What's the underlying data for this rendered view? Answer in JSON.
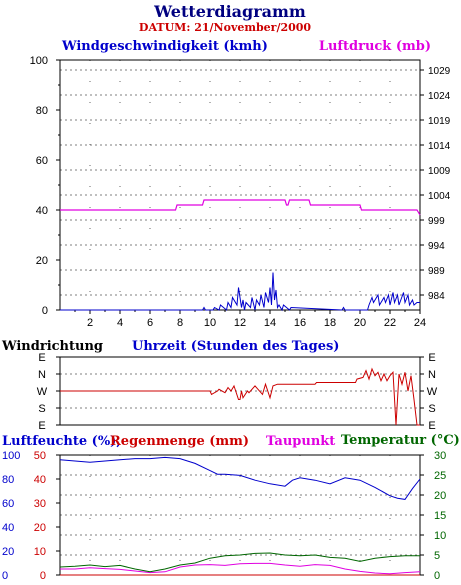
{
  "title": "Wetterdiagramm",
  "date_label": "DATUM: 21/November/2000",
  "colors": {
    "title": "#000080",
    "date": "#cc0000",
    "wind": "#0000cc",
    "pressure": "#e000e0",
    "winddir": "#cc0000",
    "humidity": "#0000cc",
    "rain": "#cc0000",
    "dewpoint": "#e000e0",
    "temperature": "#006600",
    "frame": "#000000",
    "grid": "#000000"
  },
  "chart_data": [
    {
      "id": "wind_pressure",
      "type": "line",
      "left_label": "Windgeschwindigkeit (kmh)",
      "right_label": "Luftdruck (mb)",
      "bottom_label": "Uhrzeit (Stunden des Tages)",
      "x_ticks": [
        "2",
        "4",
        "6",
        "8",
        "10",
        "12",
        "14",
        "16",
        "18",
        "20",
        "22",
        "24"
      ],
      "left_ticks": [
        "100",
        "80",
        "60",
        "40",
        "20",
        "0"
      ],
      "right_ticks": [
        "1029",
        "1024",
        "1019",
        "1014",
        "1009",
        "1004",
        "999",
        "994",
        "989",
        "984"
      ],
      "xlim": [
        0,
        24
      ],
      "ylim_left": [
        0,
        100
      ],
      "ylim_right": [
        981,
        1031
      ],
      "series": [
        {
          "name": "Windgeschwindigkeit (kmh)",
          "axis": "left",
          "x": [
            0,
            9.5,
            9.6,
            9.7,
            10.2,
            10.3,
            10.6,
            10.7,
            11.1,
            11.2,
            11.4,
            11.5,
            11.8,
            11.9,
            12.1,
            12.2,
            12.3,
            12.4,
            12.7,
            12.8,
            13.0,
            13.1,
            13.3,
            13.4,
            13.6,
            13.7,
            13.9,
            14.0,
            14.1,
            14.2,
            14.3,
            14.4,
            14.5,
            14.6,
            14.8,
            14.9,
            15.3,
            15.4,
            18.8,
            18.9,
            19.0,
            20.5,
            20.6,
            20.8,
            20.9,
            21.2,
            21.3,
            21.6,
            21.7,
            21.9,
            22.0,
            22.2,
            22.3,
            22.5,
            22.6,
            22.9,
            23.0,
            23.2,
            23.3,
            23.5,
            23.6,
            23.8,
            24
          ],
          "y": [
            0,
            0,
            1,
            0,
            0,
            1,
            0,
            2,
            0,
            3,
            1,
            5,
            2,
            9,
            1,
            4,
            0,
            3,
            1,
            5,
            0,
            4,
            2,
            6,
            1,
            7,
            3,
            9,
            2,
            15,
            4,
            8,
            1,
            2,
            0,
            2,
            0,
            1,
            0,
            1,
            0,
            0,
            2,
            5,
            3,
            6,
            2,
            5,
            3,
            6,
            2,
            7,
            3,
            6,
            2,
            7,
            3,
            6,
            2,
            4,
            2,
            3,
            3
          ]
        },
        {
          "name": "Luftdruck (mb)",
          "axis": "right",
          "x": [
            0,
            7.7,
            7.8,
            9.5,
            9.6,
            15.0,
            15.1,
            15.2,
            15.3,
            16.6,
            16.7,
            16.9,
            17.0,
            20.0,
            20.1,
            23.8,
            24
          ],
          "y": [
            1001,
            1001,
            1002,
            1002,
            1003,
            1003,
            1002,
            1002,
            1003,
            1003,
            1002,
            1002,
            1002,
            1002,
            1001,
            1001,
            1000
          ]
        }
      ]
    },
    {
      "id": "wind_direction",
      "type": "line",
      "title": "Windrichtung",
      "y_ticks": [
        "E",
        "N",
        "W",
        "S",
        "E"
      ],
      "xlim": [
        0,
        24
      ],
      "ylim": [
        0,
        4
      ],
      "y_order_top_to_bottom": [
        "E",
        "N",
        "W",
        "S",
        "E"
      ],
      "series": [
        {
          "name": "Windrichtung",
          "x": [
            0,
            10.0,
            10.1,
            10.5,
            10.6,
            11.0,
            11.2,
            11.4,
            11.6,
            11.9,
            12.0,
            12.1,
            12.2,
            12.5,
            12.6,
            13.0,
            13.2,
            13.5,
            13.7,
            14.0,
            14.2,
            14.5,
            15.0,
            17.0,
            17.1,
            19.7,
            19.8,
            20.2,
            20.4,
            20.6,
            20.8,
            21.0,
            21.2,
            21.4,
            21.6,
            21.8,
            22.0,
            22.2,
            22.4,
            22.6,
            22.8,
            23.0,
            23.2,
            23.4,
            23.6,
            23.8,
            24
          ],
          "y": [
            2.0,
            2.0,
            1.8,
            2.0,
            2.1,
            1.9,
            2.2,
            2.0,
            2.3,
            1.5,
            1.5,
            2.0,
            1.6,
            2.0,
            1.9,
            2.3,
            2.1,
            1.8,
            2.4,
            1.6,
            2.3,
            2.4,
            2.4,
            2.4,
            2.5,
            2.5,
            2.7,
            2.8,
            3.2,
            2.7,
            3.3,
            2.9,
            3.1,
            2.6,
            3.0,
            2.6,
            2.9,
            3.1,
            0.0,
            3.0,
            2.4,
            3.1,
            2.0,
            2.9,
            1.5,
            0.0,
            0.0
          ]
        }
      ]
    },
    {
      "id": "humidity_rain_temp",
      "type": "line",
      "labels": [
        "Luftfeuchte (%),",
        "Regenmenge (mm)",
        "Taupunkt",
        "Temperatur (°C)"
      ],
      "left_ticks_humidity": [
        "100",
        "80",
        "60",
        "40",
        "20",
        "0"
      ],
      "left_ticks_rain": [
        "50",
        "40",
        "30",
        "20",
        "10",
        "0"
      ],
      "right_ticks": [
        "30",
        "25",
        "20",
        "15",
        "10",
        "5",
        "0"
      ],
      "xlim": [
        0,
        24
      ],
      "ylim_left": [
        0,
        100
      ],
      "ylim_right": [
        0,
        30
      ],
      "series": [
        {
          "name": "Luftfeuchte (%)",
          "axis": "left",
          "x": [
            0,
            1,
            2,
            3,
            4,
            5,
            6,
            7,
            8,
            9,
            10,
            10.5,
            11,
            12,
            13,
            14,
            15,
            15.5,
            16,
            17,
            18,
            19,
            20,
            21,
            22,
            22.5,
            23,
            23.5,
            24
          ],
          "y": [
            96,
            95,
            94,
            95,
            96,
            97,
            97,
            98,
            97,
            93,
            87,
            84,
            84,
            83,
            79,
            76,
            74,
            79,
            81,
            79,
            76,
            81,
            79,
            73,
            66,
            64,
            63,
            72,
            80
          ]
        },
        {
          "name": "Regenmenge (mm)",
          "axis": "left",
          "x": [
            0,
            2,
            4,
            6,
            7,
            8,
            10,
            12,
            14,
            16,
            18,
            20,
            22,
            24
          ],
          "y": [
            0,
            0,
            0,
            0,
            0,
            0,
            0,
            0,
            0,
            0,
            0,
            0,
            0,
            0
          ]
        },
        {
          "name": "Taupunkt",
          "axis": "right",
          "x": [
            0,
            1,
            2,
            3,
            4,
            5,
            6,
            7,
            8,
            9,
            10,
            11,
            12,
            13,
            14,
            15,
            16,
            17,
            18,
            19,
            20,
            21,
            22,
            23,
            24
          ],
          "y": [
            1.5,
            1.5,
            1.8,
            1.6,
            1.4,
            1.0,
            0.6,
            0.8,
            2.0,
            2.5,
            2.6,
            2.4,
            2.8,
            2.9,
            2.9,
            2.5,
            2.2,
            2.6,
            2.4,
            1.5,
            0.9,
            0.5,
            0.3,
            0.6,
            0.8
          ]
        },
        {
          "name": "Temperatur (°C)",
          "axis": "right",
          "x": [
            0,
            1,
            2,
            3,
            4,
            5,
            6,
            7,
            8,
            9,
            10,
            11,
            12,
            13,
            14,
            15,
            16,
            17,
            18,
            19,
            20,
            21,
            22,
            23,
            24
          ],
          "y": [
            2.0,
            2.2,
            2.5,
            2.1,
            2.4,
            1.5,
            0.8,
            1.5,
            2.5,
            3.0,
            4.2,
            4.8,
            5.0,
            5.4,
            5.5,
            5.0,
            4.8,
            5.0,
            4.4,
            4.2,
            3.4,
            4.2,
            4.6,
            4.8,
            4.8
          ]
        }
      ]
    }
  ]
}
